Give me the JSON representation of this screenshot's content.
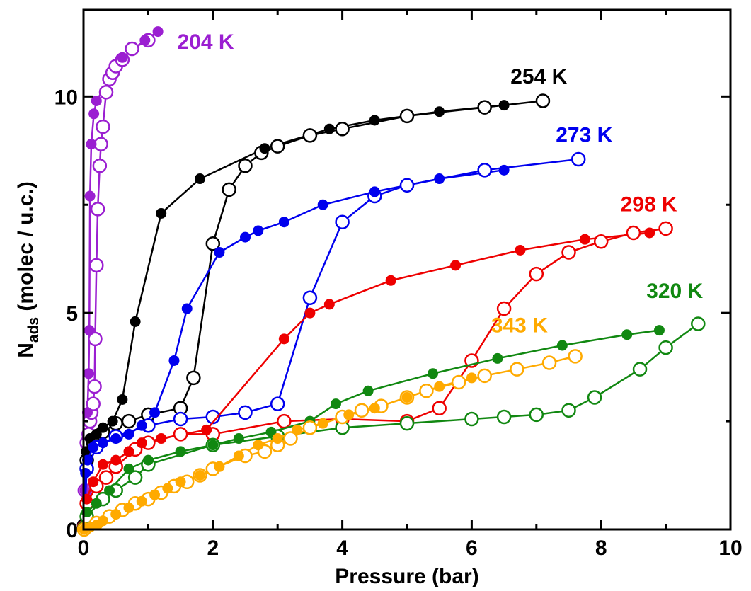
{
  "chart_data": {
    "type": "line",
    "xlabel": "Pressure (bar)",
    "ylabel_main": "N",
    "ylabel_sub": "ads",
    "ylabel_rest": " (molec / u.c.)",
    "xlim": [
      0,
      10
    ],
    "ylim": [
      0,
      12
    ],
    "x_ticks": [
      0,
      2,
      4,
      6,
      8,
      10
    ],
    "y_ticks": [
      0,
      5,
      10
    ],
    "grid": false,
    "series": [
      {
        "name": "204 K",
        "color": "#9b1fd1",
        "filled": [
          [
            0.02,
            0.9
          ],
          [
            0.04,
            1.8
          ],
          [
            0.06,
            2.7
          ],
          [
            0.08,
            3.6
          ],
          [
            0.09,
            4.6
          ],
          [
            0.1,
            7.7
          ],
          [
            0.12,
            8.9
          ],
          [
            0.16,
            9.6
          ],
          [
            0.2,
            9.9
          ],
          [
            0.6,
            10.9
          ],
          [
            0.95,
            11.3
          ],
          [
            1.15,
            11.5
          ]
        ],
        "open": [
          [
            0.02,
            0.9
          ],
          [
            0.05,
            2.0
          ],
          [
            0.08,
            2.2
          ],
          [
            0.1,
            2.5
          ],
          [
            0.12,
            2.7
          ],
          [
            0.15,
            2.9
          ],
          [
            0.17,
            3.3
          ],
          [
            0.18,
            4.4
          ],
          [
            0.2,
            6.1
          ],
          [
            0.22,
            7.4
          ],
          [
            0.25,
            8.4
          ],
          [
            0.27,
            8.9
          ],
          [
            0.3,
            9.3
          ],
          [
            0.35,
            10.1
          ],
          [
            0.4,
            10.4
          ],
          [
            0.45,
            10.55
          ],
          [
            0.5,
            10.7
          ],
          [
            0.6,
            10.85
          ],
          [
            0.75,
            11.1
          ],
          [
            1.0,
            11.3
          ]
        ]
      },
      {
        "name": "254 K",
        "color": "#000000",
        "filled": [
          [
            0.01,
            0.1
          ],
          [
            0.02,
            1.4
          ],
          [
            0.04,
            1.8
          ],
          [
            0.1,
            2.1
          ],
          [
            0.2,
            2.2
          ],
          [
            0.3,
            2.35
          ],
          [
            0.45,
            2.5
          ],
          [
            0.6,
            3.0
          ],
          [
            0.8,
            4.8
          ],
          [
            1.2,
            7.3
          ],
          [
            1.8,
            8.1
          ],
          [
            2.8,
            8.8
          ],
          [
            3.8,
            9.25
          ],
          [
            4.5,
            9.45
          ],
          [
            5.5,
            9.65
          ],
          [
            6.5,
            9.8
          ]
        ],
        "open": [
          [
            0.01,
            0.1
          ],
          [
            0.05,
            1.6
          ],
          [
            0.15,
            2.0
          ],
          [
            0.3,
            2.25
          ],
          [
            0.5,
            2.45
          ],
          [
            0.7,
            2.5
          ],
          [
            1.0,
            2.65
          ],
          [
            1.5,
            2.8
          ],
          [
            1.7,
            3.5
          ],
          [
            2.0,
            6.6
          ],
          [
            2.25,
            7.85
          ],
          [
            2.5,
            8.4
          ],
          [
            2.75,
            8.7
          ],
          [
            3.0,
            8.85
          ],
          [
            3.5,
            9.1
          ],
          [
            4.0,
            9.25
          ],
          [
            5.0,
            9.55
          ],
          [
            6.2,
            9.75
          ],
          [
            7.1,
            9.9
          ]
        ]
      },
      {
        "name": "273 K",
        "color": "#0000ee",
        "filled": [
          [
            0.01,
            0.05
          ],
          [
            0.03,
            1.3
          ],
          [
            0.06,
            1.6
          ],
          [
            0.15,
            1.9
          ],
          [
            0.3,
            2.0
          ],
          [
            0.5,
            2.1
          ],
          [
            0.7,
            2.2
          ],
          [
            0.9,
            2.4
          ],
          [
            1.1,
            2.7
          ],
          [
            1.4,
            3.9
          ],
          [
            1.6,
            5.1
          ],
          [
            2.1,
            6.4
          ],
          [
            2.5,
            6.75
          ],
          [
            2.7,
            6.9
          ],
          [
            3.1,
            7.1
          ],
          [
            3.7,
            7.5
          ],
          [
            4.5,
            7.8
          ],
          [
            5.5,
            8.1
          ],
          [
            6.5,
            8.3
          ]
        ],
        "open": [
          [
            0.01,
            0.05
          ],
          [
            0.05,
            1.4
          ],
          [
            0.2,
            1.9
          ],
          [
            0.5,
            2.15
          ],
          [
            1.0,
            2.4
          ],
          [
            1.5,
            2.55
          ],
          [
            2.0,
            2.6
          ],
          [
            2.5,
            2.7
          ],
          [
            3.0,
            2.9
          ],
          [
            3.5,
            5.35
          ],
          [
            4.0,
            7.1
          ],
          [
            4.5,
            7.7
          ],
          [
            5.0,
            7.95
          ],
          [
            6.2,
            8.3
          ],
          [
            7.65,
            8.55
          ]
        ]
      },
      {
        "name": "298 K",
        "color": "#ee0000",
        "filled": [
          [
            0.01,
            0.05
          ],
          [
            0.05,
            0.7
          ],
          [
            0.15,
            1.1
          ],
          [
            0.3,
            1.5
          ],
          [
            0.5,
            1.6
          ],
          [
            0.7,
            1.8
          ],
          [
            0.9,
            2.0
          ],
          [
            1.2,
            2.1
          ],
          [
            1.9,
            2.3
          ],
          [
            3.1,
            4.4
          ],
          [
            3.5,
            5.0
          ],
          [
            3.8,
            5.2
          ],
          [
            4.75,
            5.75
          ],
          [
            5.75,
            6.1
          ],
          [
            6.75,
            6.45
          ],
          [
            7.75,
            6.7
          ],
          [
            8.75,
            6.85
          ]
        ],
        "open": [
          [
            0.01,
            0.05
          ],
          [
            0.05,
            0.6
          ],
          [
            0.2,
            1.0
          ],
          [
            0.35,
            1.2
          ],
          [
            0.5,
            1.45
          ],
          [
            0.8,
            1.85
          ],
          [
            1.0,
            2.0
          ],
          [
            1.5,
            2.2
          ],
          [
            2.0,
            2.2
          ],
          [
            3.1,
            2.5
          ],
          [
            4.0,
            2.55
          ],
          [
            5.0,
            2.5
          ],
          [
            5.5,
            2.8
          ],
          [
            6.0,
            3.9
          ],
          [
            6.5,
            5.1
          ],
          [
            7.0,
            5.9
          ],
          [
            7.5,
            6.4
          ],
          [
            8.0,
            6.65
          ],
          [
            8.5,
            6.85
          ],
          [
            9.0,
            6.95
          ]
        ]
      },
      {
        "name": "320 K",
        "color": "#118811",
        "filled": [
          [
            0.01,
            0.02
          ],
          [
            0.05,
            0.4
          ],
          [
            0.2,
            0.6
          ],
          [
            0.4,
            0.9
          ],
          [
            0.7,
            1.4
          ],
          [
            1.0,
            1.6
          ],
          [
            1.5,
            1.8
          ],
          [
            2.0,
            1.95
          ],
          [
            2.4,
            2.1
          ],
          [
            2.9,
            2.25
          ],
          [
            3.5,
            2.5
          ],
          [
            3.9,
            2.9
          ],
          [
            4.4,
            3.2
          ],
          [
            5.4,
            3.6
          ],
          [
            6.4,
            3.95
          ],
          [
            7.4,
            4.25
          ],
          [
            8.4,
            4.5
          ],
          [
            8.9,
            4.6
          ]
        ],
        "open": [
          [
            0.01,
            0.02
          ],
          [
            0.05,
            0.3
          ],
          [
            0.3,
            0.7
          ],
          [
            0.5,
            0.9
          ],
          [
            0.8,
            1.2
          ],
          [
            1.0,
            1.5
          ],
          [
            2.0,
            1.95
          ],
          [
            3.0,
            2.15
          ],
          [
            4.0,
            2.35
          ],
          [
            5.0,
            2.45
          ],
          [
            6.0,
            2.55
          ],
          [
            6.5,
            2.6
          ],
          [
            7.0,
            2.65
          ],
          [
            7.5,
            2.75
          ],
          [
            7.9,
            3.05
          ],
          [
            8.6,
            3.7
          ],
          [
            9.0,
            4.2
          ],
          [
            9.5,
            4.75
          ]
        ]
      },
      {
        "name": "343 K",
        "color": "#ffaa00",
        "filled": [
          [
            0.01,
            0.0
          ],
          [
            0.1,
            0.05
          ],
          [
            0.2,
            0.1
          ],
          [
            0.3,
            0.2
          ],
          [
            0.5,
            0.35
          ],
          [
            0.7,
            0.5
          ],
          [
            0.9,
            0.65
          ],
          [
            1.1,
            0.8
          ],
          [
            1.3,
            0.95
          ],
          [
            1.5,
            1.1
          ],
          [
            1.8,
            1.25
          ],
          [
            2.1,
            1.45
          ],
          [
            2.4,
            1.7
          ],
          [
            2.7,
            1.95
          ],
          [
            3.0,
            2.1
          ],
          [
            3.3,
            2.3
          ],
          [
            3.7,
            2.45
          ],
          [
            4.1,
            2.65
          ],
          [
            4.5,
            2.8
          ],
          [
            5.0,
            3.05
          ],
          [
            5.5,
            3.3
          ],
          [
            6.0,
            3.5
          ]
        ],
        "open": [
          [
            0.01,
            0.0
          ],
          [
            0.2,
            0.15
          ],
          [
            0.4,
            0.3
          ],
          [
            0.6,
            0.45
          ],
          [
            0.8,
            0.6
          ],
          [
            1.0,
            0.7
          ],
          [
            1.2,
            0.85
          ],
          [
            1.4,
            1.0
          ],
          [
            1.6,
            1.1
          ],
          [
            1.8,
            1.25
          ],
          [
            2.0,
            1.4
          ],
          [
            2.5,
            1.7
          ],
          [
            2.8,
            1.8
          ],
          [
            3.0,
            1.95
          ],
          [
            3.2,
            2.1
          ],
          [
            3.5,
            2.35
          ],
          [
            4.0,
            2.6
          ],
          [
            4.3,
            2.75
          ],
          [
            4.6,
            2.85
          ],
          [
            5.0,
            3.05
          ],
          [
            5.3,
            3.2
          ],
          [
            5.8,
            3.4
          ],
          [
            6.2,
            3.55
          ],
          [
            6.7,
            3.7
          ],
          [
            7.2,
            3.85
          ],
          [
            7.6,
            4.0
          ]
        ]
      }
    ],
    "labels": [
      {
        "text": "204 K",
        "color": "#9b1fd1",
        "x": 1.45,
        "y": 11.1
      },
      {
        "text": "254 K",
        "color": "#000000",
        "x": 6.6,
        "y": 10.3
      },
      {
        "text": "273 K",
        "color": "#0000ee",
        "x": 7.3,
        "y": 8.95
      },
      {
        "text": "298 K",
        "color": "#ee0000",
        "x": 8.3,
        "y": 7.35
      },
      {
        "text": "320 K",
        "color": "#118811",
        "x": 8.7,
        "y": 5.35
      },
      {
        "text": "343 K",
        "color": "#ffaa00",
        "x": 6.3,
        "y": 4.55
      }
    ]
  }
}
